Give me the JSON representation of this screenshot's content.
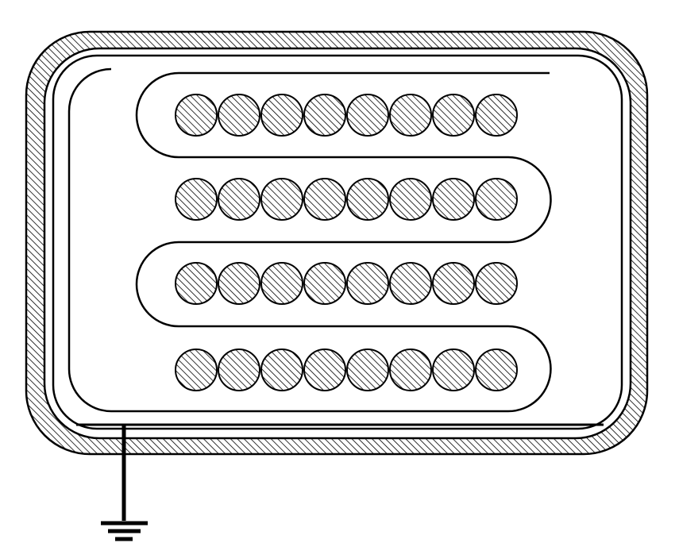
{
  "diagram": {
    "stroke_color": "#000000",
    "hatch_color": "#000000",
    "background_color": "#ffffff",
    "hatch_fill_color": "#b8b8b8",
    "conductor_rows": [
      {
        "conductor_count": 8
      },
      {
        "conductor_count": 8
      },
      {
        "conductor_count": 8
      },
      {
        "conductor_count": 8
      }
    ],
    "serpentine_shield": true,
    "outer_jacket": "hatched",
    "ground_symbol": true
  }
}
